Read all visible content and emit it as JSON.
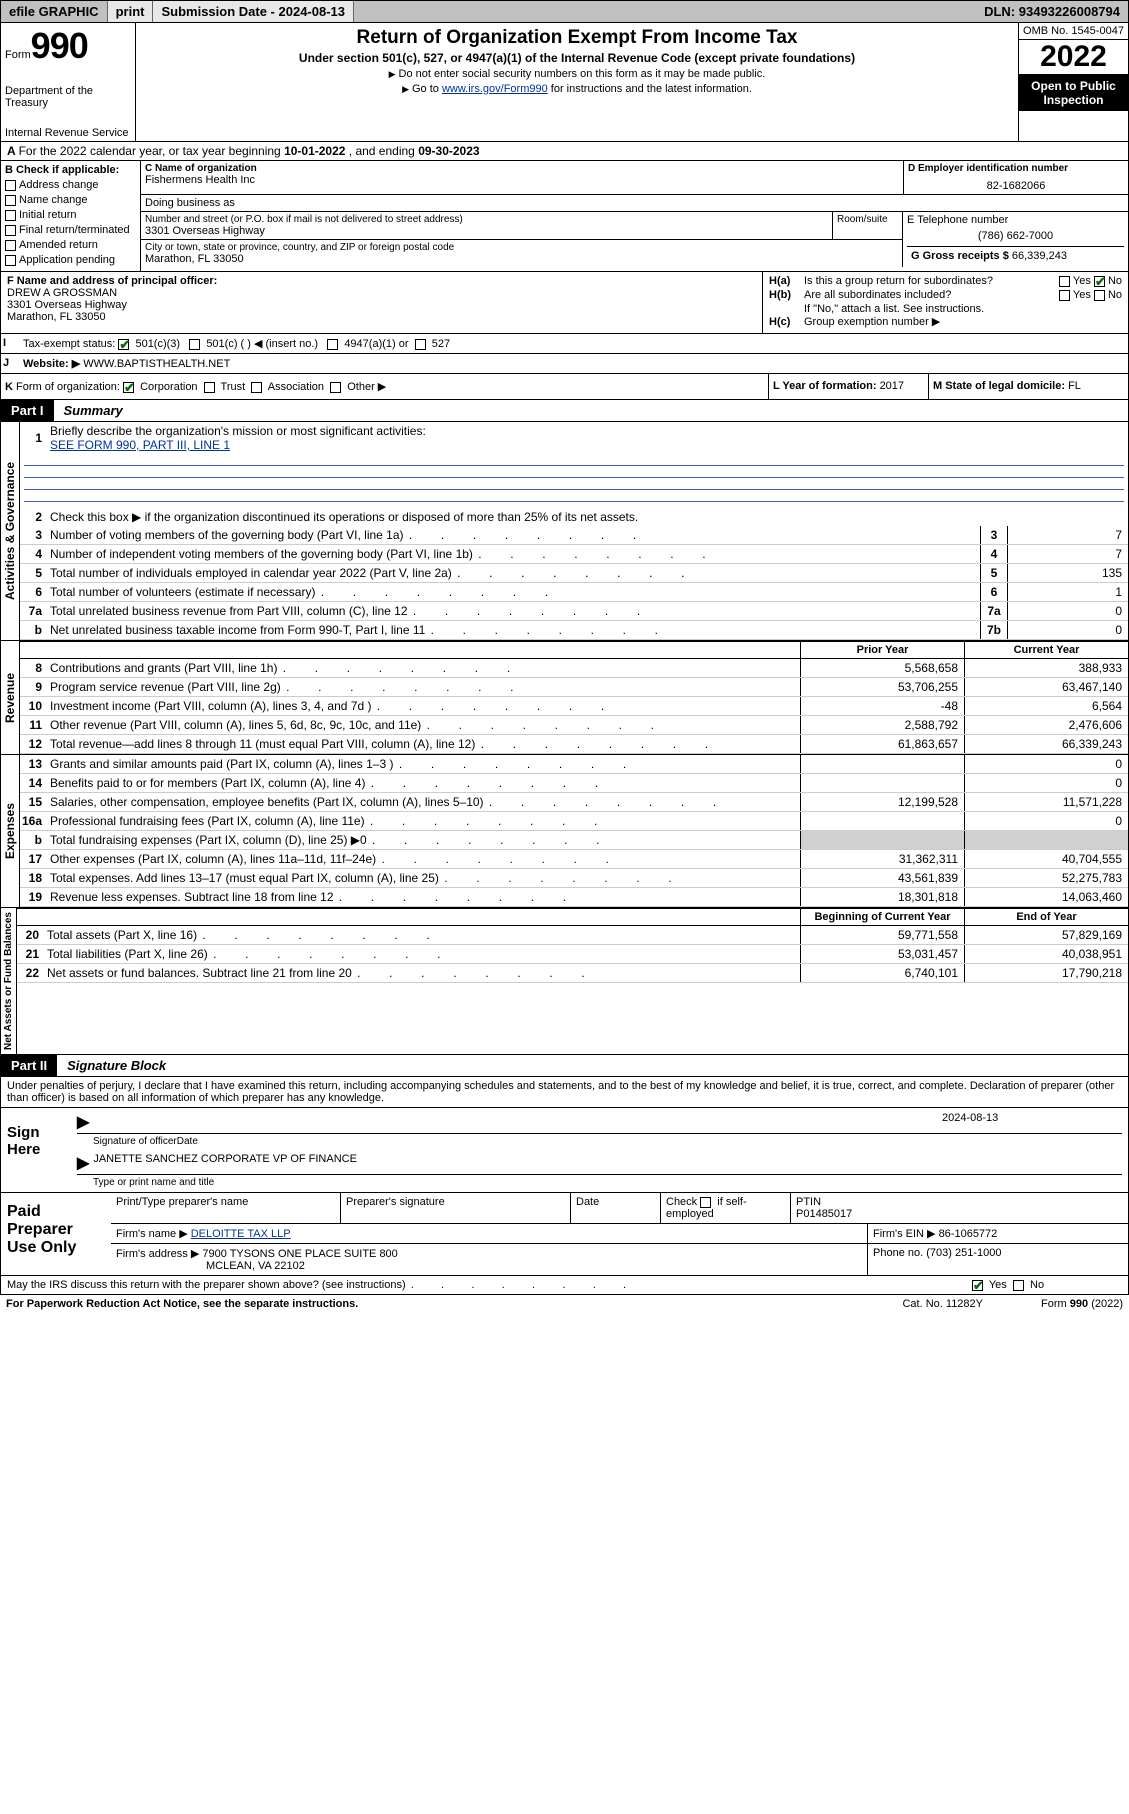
{
  "topbar": {
    "efile": "efile GRAPHIC",
    "print": "print",
    "subdate_label": "Submission Date - ",
    "subdate": "2024-08-13",
    "dln_label": "DLN: ",
    "dln": "93493226008794"
  },
  "header": {
    "form_prefix": "Form",
    "form_num": "990",
    "dept": "Department of the Treasury",
    "irs": "Internal Revenue Service",
    "title": "Return of Organization Exempt From Income Tax",
    "sub": "Under section 501(c), 527, or 4947(a)(1) of the Internal Revenue Code (except private foundations)",
    "note1": "Do not enter social security numbers on this form as it may be made public.",
    "note2_pre": "Go to ",
    "note2_link": "www.irs.gov/Form990",
    "note2_post": " for instructions and the latest information.",
    "omb": "OMB No. 1545-0047",
    "year": "2022",
    "open": "Open to Public Inspection"
  },
  "rowA": {
    "pre": "For the 2022 calendar year, or tax year beginning ",
    "begin": "10-01-2022",
    "mid": " , and ending ",
    "end": "09-30-2023"
  },
  "boxB": {
    "label": "B Check if applicable:",
    "opts": [
      "Address change",
      "Name change",
      "Initial return",
      "Final return/terminated",
      "Amended return",
      "Application pending"
    ]
  },
  "boxC": {
    "name_hdr": "C Name of organization",
    "name": "Fishermens Health Inc",
    "dba_hdr": "Doing business as",
    "addr_hdr": "Number and street (or P.O. box if mail is not delivered to street address)",
    "addr": "3301 Overseas Highway",
    "room_hdr": "Room/suite",
    "city_hdr": "City or town, state or province, country, and ZIP or foreign postal code",
    "city": "Marathon, FL  33050"
  },
  "boxD": {
    "hdr": "D Employer identification number",
    "val": "82-1682066"
  },
  "boxE": {
    "hdr": "E Telephone number",
    "val": "(786) 662-7000"
  },
  "boxG": {
    "hdr": "G Gross receipts $ ",
    "val": "66,339,243"
  },
  "boxF": {
    "hdr": "F Name and address of principal officer:",
    "name": "DREW A GROSSMAN",
    "addr1": "3301 Overseas Highway",
    "addr2": "Marathon, FL  33050"
  },
  "boxH": {
    "a_lbl": "H(a)",
    "a_txt": "Is this a group return for subordinates?",
    "b_lbl": "H(b)",
    "b_txt": "Are all subordinates included?",
    "ifno": "If \"No,\" attach a list. See instructions.",
    "c_lbl": "H(c)",
    "c_txt": "Group exemption number ▶"
  },
  "rowI": {
    "lbl": "I",
    "txt": "Tax-exempt status:",
    "o1": "501(c)(3)",
    "o2": "501(c) (  ) ◀ (insert no.)",
    "o3": "4947(a)(1) or",
    "o4": "527"
  },
  "rowJ": {
    "lbl": "J",
    "txt": "Website: ▶",
    "val": "WWW.BAPTISTHEALTH.NET"
  },
  "rowK": {
    "lbl": "K",
    "txt": "Form of organization:",
    "opts": [
      "Corporation",
      "Trust",
      "Association",
      "Other ▶"
    ]
  },
  "rowL": {
    "txt": "L Year of formation: ",
    "val": "2017"
  },
  "rowM": {
    "txt": "M State of legal domicile: ",
    "val": "FL"
  },
  "part1": {
    "tag": "Part I",
    "title": "Summary",
    "q1": "Briefly describe the organization's mission or most significant activities:",
    "q1_ans": "SEE FORM 990, PART III, LINE 1",
    "q2": "Check this box ▶       if the organization discontinued its operations or disposed of more than 25% of its net assets.",
    "vlab_gov": "Activities & Governance",
    "vlab_rev": "Revenue",
    "vlab_exp": "Expenses",
    "vlab_net": "Net Assets or Fund Balances",
    "rows_gov": [
      {
        "n": "3",
        "t": "Number of voting members of the governing body (Part VI, line 1a)",
        "r": "3",
        "v": "7"
      },
      {
        "n": "4",
        "t": "Number of independent voting members of the governing body (Part VI, line 1b)",
        "r": "4",
        "v": "7"
      },
      {
        "n": "5",
        "t": "Total number of individuals employed in calendar year 2022 (Part V, line 2a)",
        "r": "5",
        "v": "135"
      },
      {
        "n": "6",
        "t": "Total number of volunteers (estimate if necessary)",
        "r": "6",
        "v": "1"
      },
      {
        "n": "7a",
        "t": "Total unrelated business revenue from Part VIII, column (C), line 12",
        "r": "7a",
        "v": "0"
      },
      {
        "n": "b",
        "t": "Net unrelated business taxable income from Form 990-T, Part I, line 11",
        "r": "7b",
        "v": "0"
      }
    ],
    "hdr_prior": "Prior Year",
    "hdr_curr": "Current Year",
    "rows_rev": [
      {
        "n": "8",
        "t": "Contributions and grants (Part VIII, line 1h)",
        "p": "5,568,658",
        "c": "388,933"
      },
      {
        "n": "9",
        "t": "Program service revenue (Part VIII, line 2g)",
        "p": "53,706,255",
        "c": "63,467,140"
      },
      {
        "n": "10",
        "t": "Investment income (Part VIII, column (A), lines 3, 4, and 7d )",
        "p": "-48",
        "c": "6,564"
      },
      {
        "n": "11",
        "t": "Other revenue (Part VIII, column (A), lines 5, 6d, 8c, 9c, 10c, and 11e)",
        "p": "2,588,792",
        "c": "2,476,606"
      },
      {
        "n": "12",
        "t": "Total revenue—add lines 8 through 11 (must equal Part VIII, column (A), line 12)",
        "p": "61,863,657",
        "c": "66,339,243"
      }
    ],
    "rows_exp": [
      {
        "n": "13",
        "t": "Grants and similar amounts paid (Part IX, column (A), lines 1–3 )",
        "p": "",
        "c": "0"
      },
      {
        "n": "14",
        "t": "Benefits paid to or for members (Part IX, column (A), line 4)",
        "p": "",
        "c": "0"
      },
      {
        "n": "15",
        "t": "Salaries, other compensation, employee benefits (Part IX, column (A), lines 5–10)",
        "p": "12,199,528",
        "c": "11,571,228"
      },
      {
        "n": "16a",
        "t": "Professional fundraising fees (Part IX, column (A), line 11e)",
        "p": "",
        "c": "0"
      },
      {
        "n": "b",
        "t": "Total fundraising expenses (Part IX, column (D), line 25) ▶0",
        "p": "SHADE",
        "c": "SHADE"
      },
      {
        "n": "17",
        "t": "Other expenses (Part IX, column (A), lines 11a–11d, 11f–24e)",
        "p": "31,362,311",
        "c": "40,704,555"
      },
      {
        "n": "18",
        "t": "Total expenses. Add lines 13–17 (must equal Part IX, column (A), line 25)",
        "p": "43,561,839",
        "c": "52,275,783"
      },
      {
        "n": "19",
        "t": "Revenue less expenses. Subtract line 18 from line 12",
        "p": "18,301,818",
        "c": "14,063,460"
      }
    ],
    "hdr_begin": "Beginning of Current Year",
    "hdr_end": "End of Year",
    "rows_net": [
      {
        "n": "20",
        "t": "Total assets (Part X, line 16)",
        "p": "59,771,558",
        "c": "57,829,169"
      },
      {
        "n": "21",
        "t": "Total liabilities (Part X, line 26)",
        "p": "53,031,457",
        "c": "40,038,951"
      },
      {
        "n": "22",
        "t": "Net assets or fund balances. Subtract line 21 from line 20",
        "p": "6,740,101",
        "c": "17,790,218"
      }
    ]
  },
  "part2": {
    "tag": "Part II",
    "title": "Signature Block",
    "declare": "Under penalties of perjury, I declare that I have examined this return, including accompanying schedules and statements, and to the best of my knowledge and belief, it is true, correct, and complete. Declaration of preparer (other than officer) is based on all information of which preparer has any knowledge.",
    "sign_here": "Sign Here",
    "sig_officer": "Signature of officer",
    "sig_date": "Date",
    "sig_date_val": "2024-08-13",
    "sig_name": "JANETTE SANCHEZ CORPORATE VP OF FINANCE",
    "sig_name_lbl": "Type or print name and title",
    "paid": "Paid Preparer Use Only",
    "prep_name_hdr": "Print/Type preparer's name",
    "prep_sig_hdr": "Preparer's signature",
    "prep_date_hdr": "Date",
    "prep_check": "Check       if self-employed",
    "ptin_hdr": "PTIN",
    "ptin": "P01485017",
    "firm_name_lbl": "Firm's name    ▶ ",
    "firm_name": "DELOITTE TAX LLP",
    "firm_ein_lbl": "Firm's EIN ▶ ",
    "firm_ein": "86-1065772",
    "firm_addr_lbl": "Firm's address ▶ ",
    "firm_addr1": "7900 TYSONS ONE PLACE SUITE 800",
    "firm_addr2": "MCLEAN, VA  22102",
    "phone_lbl": "Phone no. ",
    "phone": "(703) 251-1000",
    "may_irs": "May the IRS discuss this return with the preparer shown above? (see instructions)",
    "yes": "Yes",
    "no": "No"
  },
  "footer": {
    "pra": "For Paperwork Reduction Act Notice, see the separate instructions.",
    "cat": "Cat. No. 11282Y",
    "form": "Form 990 (2022)"
  }
}
